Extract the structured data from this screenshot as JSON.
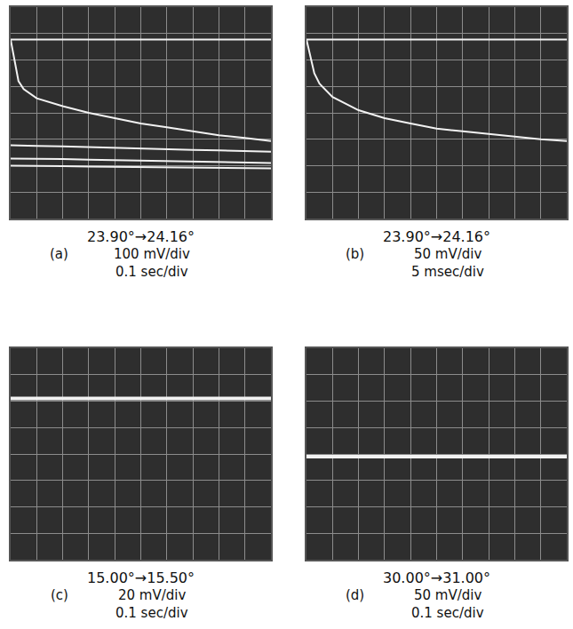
{
  "chart_data": [
    {
      "type": "line",
      "title": "23.90°→24.16°",
      "panel": "(a)",
      "annotations": [
        "100 mV/div",
        "0.1 sec/div"
      ],
      "x": [
        0,
        0.15,
        0.3,
        0.5,
        1,
        2,
        3,
        4,
        5,
        6,
        7,
        8,
        9,
        10
      ],
      "series": [
        {
          "color": "#f2f2f2",
          "values": [
            6.77,
            6.77,
            6.77,
            6.77,
            6.77,
            6.77,
            6.77,
            6.77,
            6.77,
            6.77,
            6.77,
            6.77,
            6.77,
            6.77
          ]
        },
        {
          "color": "#f2f2f2",
          "values": [
            6.77,
            6.0,
            5.2,
            4.9,
            4.55,
            4.25,
            4.0,
            3.8,
            3.6,
            3.45,
            3.3,
            3.15,
            3.05,
            2.93
          ]
        },
        {
          "color": "#f2f2f2",
          "values": [
            2.77,
            2.77,
            2.77,
            2.76,
            2.75,
            2.73,
            2.7,
            2.68,
            2.65,
            2.63,
            2.6,
            2.58,
            2.55,
            2.53
          ]
        },
        {
          "color": "#f2f2f2",
          "values": [
            2.27,
            2.27,
            2.27,
            2.27,
            2.26,
            2.25,
            2.23,
            2.21,
            2.19,
            2.17,
            2.15,
            2.13,
            2.12,
            2.1
          ]
        },
        {
          "color": "#f2f2f2",
          "values": [
            2.0,
            2.0,
            2.0,
            2.0,
            1.99,
            1.98,
            1.97,
            1.96,
            1.95,
            1.94,
            1.93,
            1.92,
            1.91,
            1.9
          ]
        }
      ],
      "xlim": [
        0,
        10
      ],
      "ylim": [
        0,
        8
      ],
      "xticks": [
        0,
        1,
        2,
        3,
        4,
        5,
        6,
        7,
        8,
        9,
        10
      ],
      "yticks": [
        0,
        1,
        2,
        3,
        4,
        5,
        6,
        7,
        8
      ],
      "grid": true,
      "tick_labels": false
    },
    {
      "type": "line",
      "title": "23.90°→24.16°",
      "panel": "(b)",
      "annotations": [
        "50 mV/div",
        "5 msec/div"
      ],
      "x": [
        0,
        0.15,
        0.3,
        0.5,
        1,
        2,
        3,
        4,
        5,
        6,
        7,
        8,
        9,
        10
      ],
      "series": [
        {
          "color": "#f2f2f2",
          "values": [
            6.77,
            6.77,
            6.77,
            6.77,
            6.77,
            6.77,
            6.77,
            6.77,
            6.77,
            6.77,
            6.77,
            6.77,
            6.77,
            6.77
          ]
        },
        {
          "color": "#f2f2f2",
          "values": [
            6.77,
            6.1,
            5.5,
            5.1,
            4.6,
            4.1,
            3.8,
            3.6,
            3.4,
            3.3,
            3.2,
            3.1,
            3.0,
            2.93
          ]
        }
      ],
      "xlim": [
        0,
        10
      ],
      "ylim": [
        0,
        8
      ],
      "xticks": [
        0,
        1,
        2,
        3,
        4,
        5,
        6,
        7,
        8,
        9,
        10
      ],
      "yticks": [
        0,
        1,
        2,
        3,
        4,
        5,
        6,
        7,
        8
      ],
      "grid": true,
      "tick_labels": false
    },
    {
      "type": "line",
      "title": "15.00°→15.50°",
      "panel": "(c)",
      "annotations": [
        "20 mV/div",
        "0.1 sec/div"
      ],
      "x": [
        0,
        10
      ],
      "series": [
        {
          "color": "#f2f2f2",
          "values": [
            6.1,
            6.1
          ]
        }
      ],
      "xlim": [
        0,
        10
      ],
      "ylim": [
        0,
        8
      ],
      "xticks": [
        0,
        1,
        2,
        3,
        4,
        5,
        6,
        7,
        8,
        9,
        10
      ],
      "yticks": [
        0,
        1,
        2,
        3,
        4,
        5,
        6,
        7,
        8
      ],
      "grid": true,
      "tick_labels": false
    },
    {
      "type": "line",
      "title": "30.00°→31.00°",
      "panel": "(d)",
      "annotations": [
        "50 mV/div",
        "0.1 sec/div"
      ],
      "x": [
        0,
        10
      ],
      "series": [
        {
          "color": "#f2f2f2",
          "values": [
            3.9,
            3.9
          ]
        }
      ],
      "xlim": [
        0,
        10
      ],
      "ylim": [
        0,
        8
      ],
      "xticks": [
        0,
        1,
        2,
        3,
        4,
        5,
        6,
        7,
        8,
        9,
        10
      ],
      "yticks": [
        0,
        1,
        2,
        3,
        4,
        5,
        6,
        7,
        8
      ],
      "grid": true,
      "tick_labels": false
    }
  ]
}
